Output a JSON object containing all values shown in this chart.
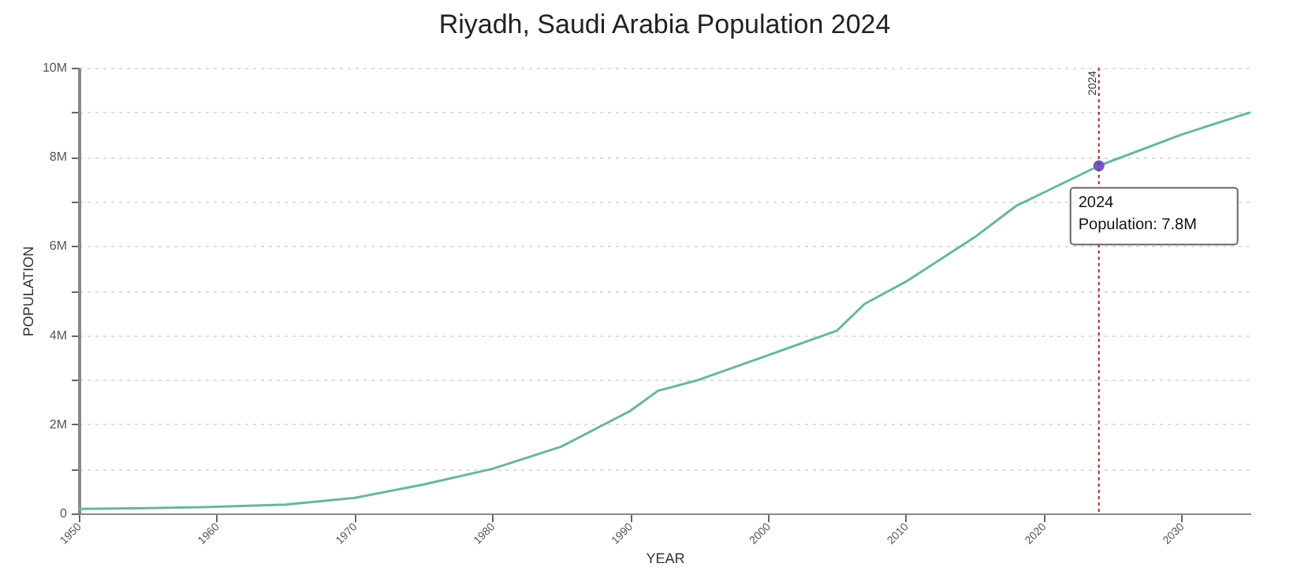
{
  "chart_data": {
    "type": "line",
    "title": "Riyadh, Saudi Arabia Population 2024",
    "xlabel": "YEAR",
    "ylabel": "POPULATION",
    "series": [
      {
        "color": "#66b89c",
        "x": [
          1950,
          1955,
          1960,
          1965,
          1970,
          1975,
          1980,
          1985,
          1990,
          1992,
          1995,
          2000,
          2005,
          2007,
          2010,
          2015,
          2018,
          2020,
          2024,
          2030,
          2035
        ],
        "values": [
          0.1,
          0.12,
          0.15,
          0.2,
          0.35,
          0.65,
          1.0,
          1.5,
          2.3,
          2.75,
          3.0,
          3.55,
          4.1,
          4.7,
          5.2,
          6.2,
          6.9,
          7.2,
          7.8,
          8.5,
          9.0
        ]
      },
      {
        "type": "scatter",
        "marker": "circle",
        "color": "#6a5acd",
        "x": [
          2024
        ],
        "values": [
          7.8
        ]
      }
    ],
    "xlim": [
      1950,
      2035
    ],
    "xticks": [
      1950,
      1960,
      1970,
      1980,
      1990,
      2000,
      2010,
      2020,
      2030
    ],
    "ylim": [
      0,
      10
    ],
    "yticks": [
      0,
      {
        "value": 1,
        "label": null
      },
      {
        "value": 2,
        "label": "2M"
      },
      {
        "value": 3,
        "label": null
      },
      {
        "value": 4,
        "label": "4M"
      },
      {
        "value": 5,
        "label": null
      },
      {
        "value": 6,
        "label": "6M"
      },
      {
        "value": 7,
        "label": null
      },
      {
        "value": 8,
        "label": "8M"
      },
      {
        "value": 9,
        "label": null
      },
      {
        "value": 10,
        "label": "10M"
      }
    ],
    "grid": "y",
    "marker": "none",
    "ref_lines": [
      {
        "axis": "x",
        "value": 2024,
        "label": "2024",
        "color": "#b22222",
        "line_style": "dotted"
      }
    ],
    "annotations": [
      {
        "text": "2024\nPopulation: 7.8M",
        "x": 2024,
        "y": 7.8
      }
    ]
  }
}
